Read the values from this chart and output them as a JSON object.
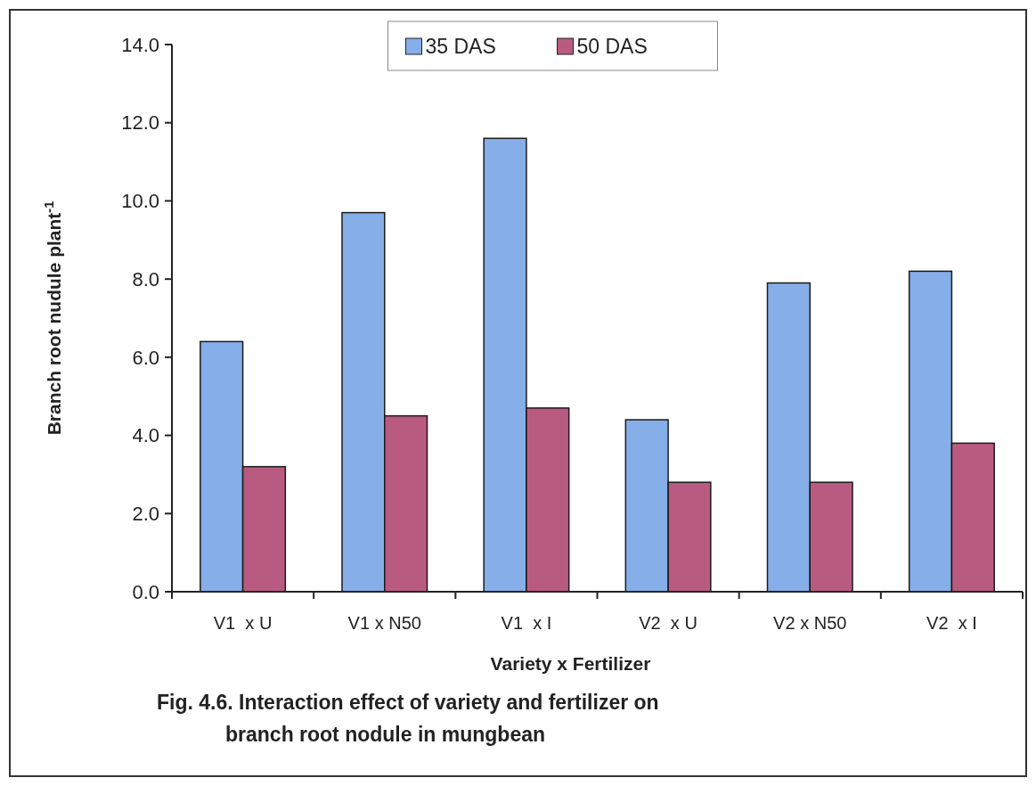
{
  "chart_data": {
    "type": "bar",
    "title": "Fig. 4.6. Interaction effect of variety and fertilizer on branch root nodule in mungbean",
    "xlabel": "Variety x Fertilizer",
    "ylabel": "Branch root nudule plant$^{-1}$",
    "categories": [
      "V1  x U",
      "V1 x N50",
      "V1  x I",
      "V2  x U",
      "V2 x N50",
      "V2  x I"
    ],
    "series": [
      {
        "name": "35 DAS",
        "color": "#86aee8",
        "values": [
          6.4,
          9.7,
          11.6,
          4.4,
          7.9,
          8.2
        ]
      },
      {
        "name": "50 DAS",
        "color": "#b95b80",
        "values": [
          3.2,
          4.5,
          4.7,
          2.8,
          2.8,
          3.8
        ]
      }
    ],
    "ylim": [
      0,
      14
    ],
    "yticks": [
      {
        "value": 0,
        "label": "0.0"
      },
      {
        "value": 2,
        "label": "2.0"
      },
      {
        "value": 4,
        "label": "4.0"
      },
      {
        "value": 6,
        "label": "6.0"
      },
      {
        "value": 8,
        "label": "8.0"
      },
      {
        "value": 10,
        "label": "10.0"
      },
      {
        "value": 12,
        "label": "12.0"
      },
      {
        "value": 14,
        "label": "14.0"
      }
    ],
    "legend": "top",
    "grid": false
  }
}
